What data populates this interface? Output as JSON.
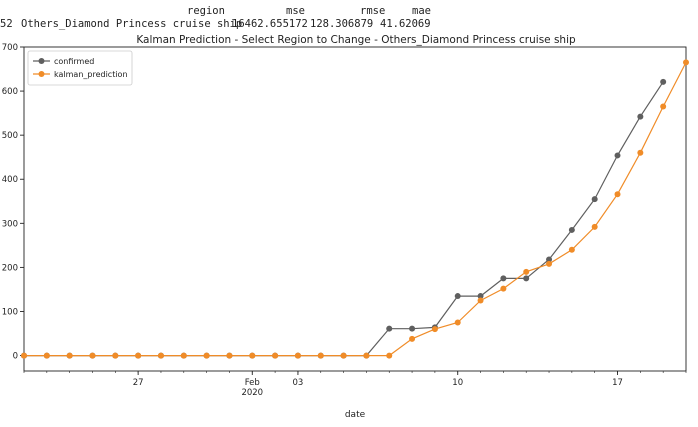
{
  "table": {
    "headers": [
      "region",
      "mse",
      "rmse",
      "mae"
    ],
    "row": {
      "index": "52",
      "region": "Others_Diamond Princess cruise ship",
      "mse": "16462.655172",
      "rmse": "128.306879",
      "mae": "41.62069"
    }
  },
  "chart_data": {
    "type": "line",
    "title": "Kalman Prediction - Select Region to Change - Others_Diamond Princess cruise ship",
    "xlabel": "date",
    "ylabel": "",
    "x": [
      "2020-01-22",
      "2020-01-23",
      "2020-01-24",
      "2020-01-25",
      "2020-01-26",
      "2020-01-27",
      "2020-01-28",
      "2020-01-29",
      "2020-01-30",
      "2020-01-31",
      "2020-02-01",
      "2020-02-02",
      "2020-02-03",
      "2020-02-04",
      "2020-02-05",
      "2020-02-06",
      "2020-02-07",
      "2020-02-08",
      "2020-02-09",
      "2020-02-10",
      "2020-02-11",
      "2020-02-12",
      "2020-02-13",
      "2020-02-14",
      "2020-02-15",
      "2020-02-16",
      "2020-02-17",
      "2020-02-18",
      "2020-02-19",
      "2020-02-20"
    ],
    "series": [
      {
        "name": "confirmed",
        "color": "#5f5f5f",
        "values": [
          0,
          0,
          0,
          0,
          0,
          0,
          0,
          0,
          0,
          0,
          0,
          0,
          0,
          0,
          0,
          0,
          61,
          61,
          64,
          135,
          135,
          175,
          175,
          218,
          285,
          355,
          454,
          542,
          621,
          null
        ]
      },
      {
        "name": "kalman_prediction",
        "color": "#f08c28",
        "values": [
          0,
          0,
          0,
          0,
          0,
          0,
          0,
          0,
          0,
          0,
          0,
          0,
          0,
          0,
          0,
          0,
          0,
          38,
          60,
          75,
          125,
          152,
          190,
          208,
          240,
          292,
          366,
          460,
          565,
          665
        ]
      }
    ],
    "xticks": [
      {
        "date": "2020-01-27",
        "label": "27",
        "sublabel": ""
      },
      {
        "date": "2020-02-01",
        "label": "Feb",
        "sublabel": "2020"
      },
      {
        "date": "2020-02-03",
        "label": "03",
        "sublabel": ""
      },
      {
        "date": "2020-02-10",
        "label": "10",
        "sublabel": ""
      },
      {
        "date": "2020-02-17",
        "label": "17",
        "sublabel": ""
      }
    ],
    "yticks": [
      0,
      100,
      200,
      300,
      400,
      500,
      600,
      700
    ],
    "ylim": [
      -35,
      700
    ],
    "xlim": [
      "2020-01-22",
      "2020-02-20"
    ],
    "grid": false,
    "legend_position": "upper left"
  }
}
